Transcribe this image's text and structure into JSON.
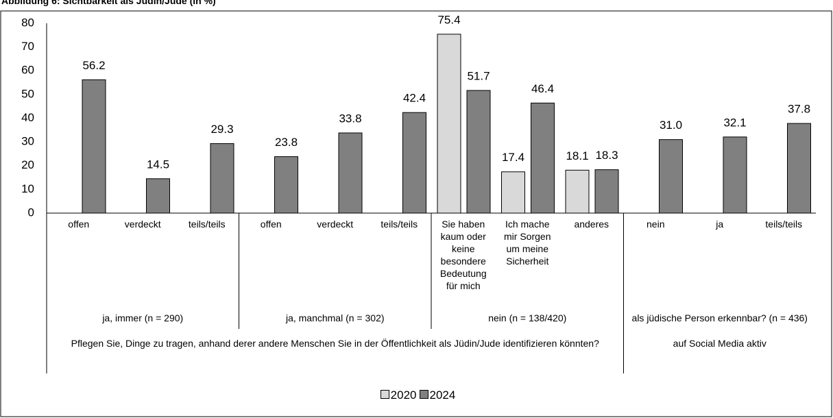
{
  "chart_data": {
    "type": "bar",
    "title": "Abbildung 6: Sichtbarkeit als Jüdin/Jude (in %)",
    "categories": [
      "offen",
      "verdeckt",
      "teils/teils",
      "offen",
      "verdeckt",
      "teils/teils",
      "Sie haben kaum oder keine besondere Bedeutung für mich",
      "Ich mache mir Sorgen um meine Sicherheit",
      "anderes",
      "nein",
      "ja",
      "teils/teils"
    ],
    "groups": [
      {
        "label": "ja, immer (n = 290)",
        "span": 3
      },
      {
        "label": "ja, manchmal (n = 302)",
        "span": 3
      },
      {
        "label": "nein (n = 138/420)",
        "span": 3
      },
      {
        "label": "als jüdische Person erkennbar? (n = 436)",
        "span": 3
      }
    ],
    "supergroups": [
      {
        "label": "Pflegen Sie, Dinge zu tragen, anhand derer andere Menschen Sie in der Öffentlichkeit als Jüdin/Jude identifizieren könnten?",
        "span": 9
      },
      {
        "label": "auf Social Media aktiv",
        "span": 3
      }
    ],
    "series": [
      {
        "name": "2020",
        "color": "#d9d9d9",
        "values": [
          null,
          null,
          null,
          null,
          null,
          null,
          75.4,
          17.4,
          18.1,
          null,
          null,
          null
        ]
      },
      {
        "name": "2024",
        "color": "#808080",
        "values": [
          56.2,
          14.5,
          29.3,
          23.8,
          33.8,
          42.4,
          51.7,
          46.4,
          18.3,
          31.0,
          32.1,
          37.8
        ],
        "value_labels": [
          "56.2",
          "14.5",
          "29.3",
          "23.8",
          "33.8",
          "42.4",
          "51.7",
          "46.4",
          "18.3",
          "31.0",
          "32.1",
          "37.8"
        ]
      }
    ],
    "ylim": [
      0,
      80
    ],
    "yticks": [
      0,
      10,
      20,
      30,
      40,
      50,
      60,
      70,
      80
    ],
    "grid": false,
    "legend": "bottom"
  }
}
